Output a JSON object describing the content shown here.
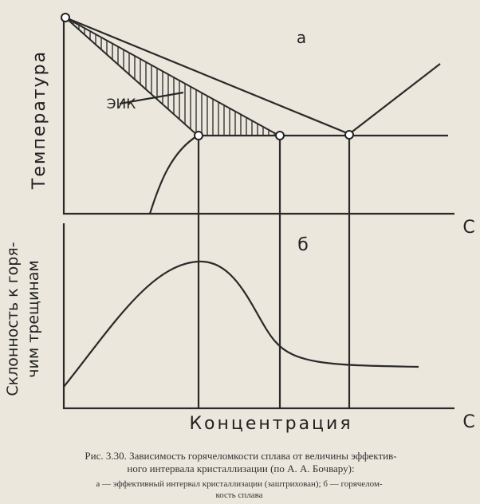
{
  "diagram": {
    "panel_a": {
      "label": "а",
      "y_axis_label": "Температура",
      "x_axis_label": "С",
      "region_label": "ЭИК"
    },
    "panel_b": {
      "label": "б",
      "y_axis_label_lines": [
        "Склонность к горя-",
        "чим трещинам"
      ],
      "x_axis_label": "С",
      "x_axis_title": "Концентрация"
    }
  },
  "caption": {
    "title_lines": [
      "Рис. 3.30. Зависимость горячеломкости сплава от величины эффектив-",
      "ного интервала кристаллизации (по А. А. Бочвару):"
    ],
    "legend_lines": [
      "а — эффективный интервал кристаллизации (заштрихован); б — горячелом-",
      "кость сплава"
    ]
  }
}
